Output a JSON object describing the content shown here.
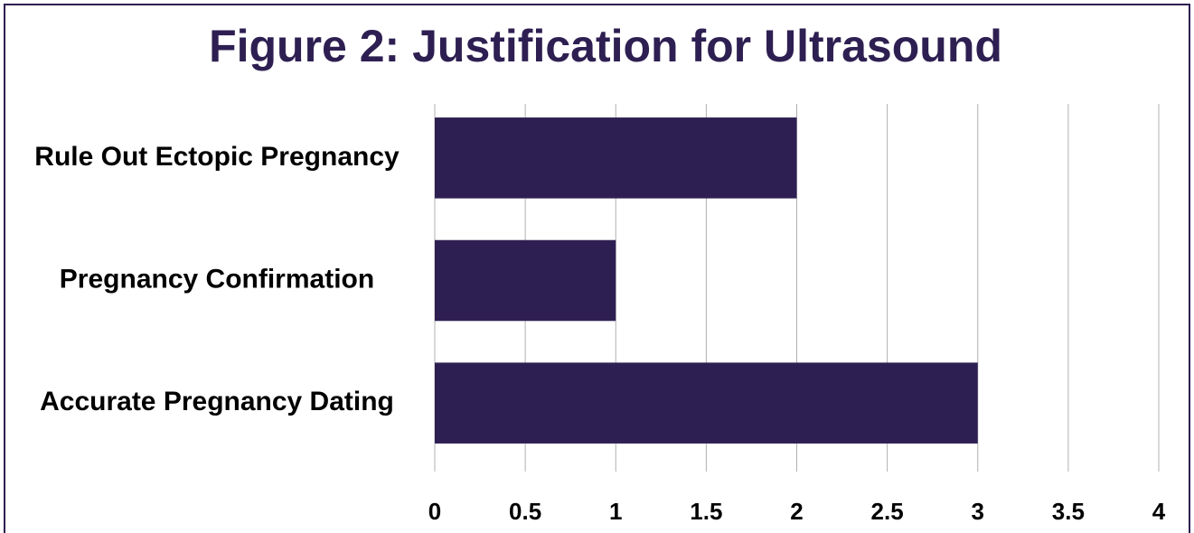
{
  "chart_data": {
    "type": "bar",
    "orientation": "horizontal",
    "title": "Figure 2: Justification for Ultrasound",
    "categories": [
      "Rule Out Ectopic Pregnancy",
      "Pregnancy Confirmation",
      "Accurate Pregnancy Dating"
    ],
    "values": [
      2,
      1,
      3
    ],
    "color": "#2e1f52",
    "xlim": [
      0,
      4
    ],
    "xticks": [
      0,
      0.5,
      1,
      1.5,
      2,
      2.5,
      3,
      3.5,
      4
    ],
    "grid": true
  }
}
